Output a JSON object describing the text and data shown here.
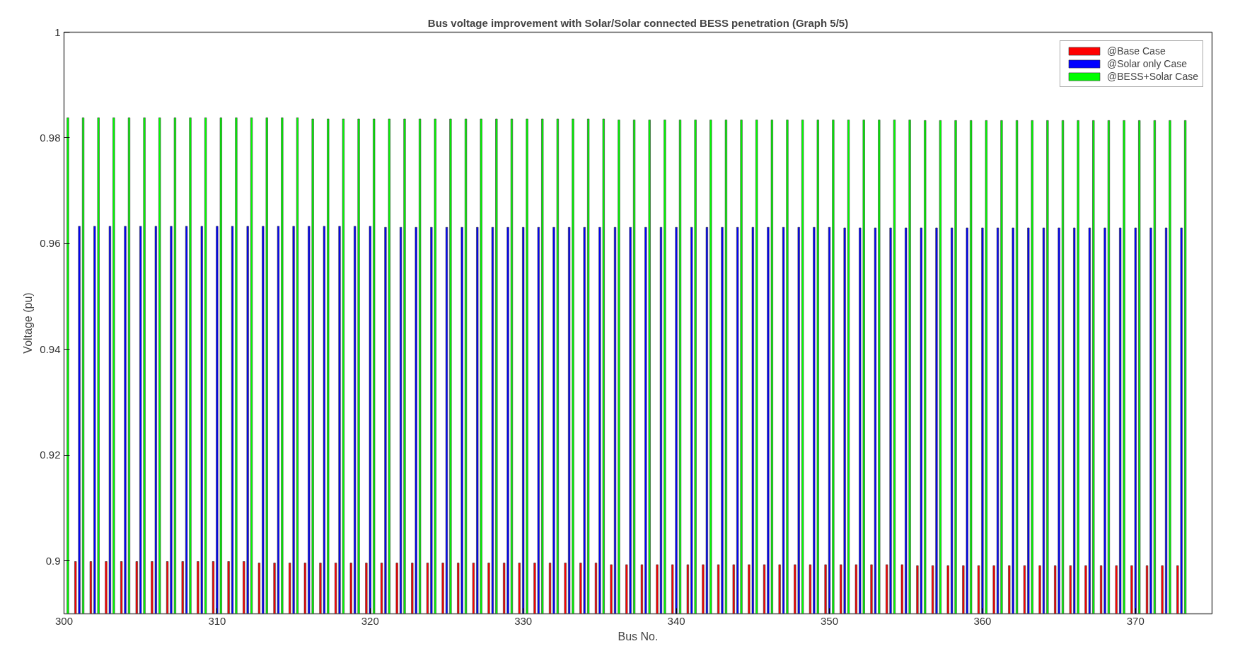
{
  "chart_data": {
    "type": "bar",
    "title": "Bus voltage improvement with Solar/Solar connected BESS penetration (Graph 5/5)",
    "xlabel": "Bus No.",
    "ylabel": "Voltage (pu)",
    "x": [
      300,
      301,
      302,
      303,
      304,
      305,
      306,
      307,
      308,
      309,
      310,
      311,
      312,
      313,
      314,
      315,
      316,
      317,
      318,
      319,
      320,
      321,
      322,
      323,
      324,
      325,
      326,
      327,
      328,
      329,
      330,
      331,
      332,
      333,
      334,
      335,
      336,
      337,
      338,
      339,
      340,
      341,
      342,
      343,
      344,
      345,
      346,
      347,
      348,
      349,
      350,
      351,
      352,
      353,
      354,
      355,
      356,
      357,
      358,
      359,
      360,
      361,
      362,
      363,
      364,
      365,
      366,
      367,
      368,
      369,
      370,
      371,
      372,
      373
    ],
    "series": [
      {
        "name": "@Base Case",
        "color": "#ff0000",
        "values": [
          null,
          0.8999,
          0.8999,
          0.8999,
          0.8999,
          0.8999,
          0.8999,
          0.8999,
          0.8999,
          0.8999,
          0.8999,
          0.8999,
          0.8999,
          0.8996,
          0.8996,
          0.8996,
          0.8996,
          0.8996,
          0.8996,
          0.8996,
          0.8996,
          0.8996,
          0.8996,
          0.8996,
          0.8996,
          0.8996,
          0.8996,
          0.8996,
          0.8996,
          0.8996,
          0.8996,
          0.8996,
          0.8996,
          0.8996,
          0.8996,
          0.8996,
          0.8993,
          0.8993,
          0.8993,
          0.8993,
          0.8993,
          0.8993,
          0.8993,
          0.8993,
          0.8993,
          0.8993,
          0.8993,
          0.8993,
          0.8993,
          0.8993,
          0.8993,
          0.8993,
          0.8993,
          0.8993,
          0.8993,
          0.8993,
          0.8991,
          0.8991,
          0.8991,
          0.8991,
          0.8991,
          0.8991,
          0.8991,
          0.8991,
          0.8991,
          0.8991,
          0.8991,
          0.8991,
          0.8991,
          0.8991,
          0.8991,
          0.8991,
          0.8991,
          0.8991
        ]
      },
      {
        "name": "@Solar only Case",
        "color": "#0000ff",
        "values": [
          null,
          0.9633,
          0.9633,
          0.9633,
          0.9633,
          0.9633,
          0.9633,
          0.9633,
          0.9633,
          0.9633,
          0.9633,
          0.9633,
          0.9633,
          0.9633,
          0.9633,
          0.9633,
          0.9633,
          0.9633,
          0.9633,
          0.9633,
          0.9633,
          0.9631,
          0.9631,
          0.9631,
          0.9631,
          0.9631,
          0.9631,
          0.9631,
          0.9631,
          0.9631,
          0.9631,
          0.9631,
          0.9631,
          0.9631,
          0.9631,
          0.9631,
          0.9631,
          0.9631,
          0.9631,
          0.9631,
          0.9631,
          0.9631,
          0.9631,
          0.9631,
          0.9631,
          0.9631,
          0.9631,
          0.9631,
          0.9631,
          0.9631,
          0.9631,
          0.963,
          0.963,
          0.963,
          0.963,
          0.963,
          0.963,
          0.963,
          0.963,
          0.963,
          0.963,
          0.963,
          0.963,
          0.963,
          0.963,
          0.963,
          0.963,
          0.963,
          0.963,
          0.963,
          0.963,
          0.963,
          0.963,
          0.963
        ]
      },
      {
        "name": "@BESS+Solar Case",
        "color": "#00ff00",
        "values": [
          0.9838,
          0.9838,
          0.9838,
          0.9838,
          0.9838,
          0.9838,
          0.9838,
          0.9838,
          0.9838,
          0.9838,
          0.9838,
          0.9838,
          0.9838,
          0.9838,
          0.9838,
          0.9838,
          0.9836,
          0.9836,
          0.9836,
          0.9836,
          0.9836,
          0.9836,
          0.9836,
          0.9836,
          0.9836,
          0.9836,
          0.9836,
          0.9836,
          0.9836,
          0.9836,
          0.9836,
          0.9836,
          0.9836,
          0.9836,
          0.9836,
          0.9836,
          0.9834,
          0.9834,
          0.9834,
          0.9834,
          0.9834,
          0.9834,
          0.9834,
          0.9834,
          0.9834,
          0.9834,
          0.9834,
          0.9834,
          0.9834,
          0.9834,
          0.9834,
          0.9834,
          0.9834,
          0.9834,
          0.9834,
          0.9834,
          0.9833,
          0.9833,
          0.9833,
          0.9833,
          0.9833,
          0.9833,
          0.9833,
          0.9833,
          0.9833,
          0.9833,
          0.9833,
          0.9833,
          0.9833,
          0.9833,
          0.9833,
          0.9833,
          0.9833,
          0.9833
        ]
      }
    ],
    "xlim": [
      300,
      375
    ],
    "xticks": [
      300,
      310,
      320,
      330,
      340,
      350,
      360,
      370
    ],
    "ylim": [
      0.89,
      1
    ],
    "yticks": [
      {
        "value": 0.9,
        "label": "0.9"
      },
      0.92,
      0.94,
      0.96,
      0.98,
      {
        "value": 1,
        "label": "1"
      }
    ],
    "grid": false,
    "legend": "top right"
  }
}
